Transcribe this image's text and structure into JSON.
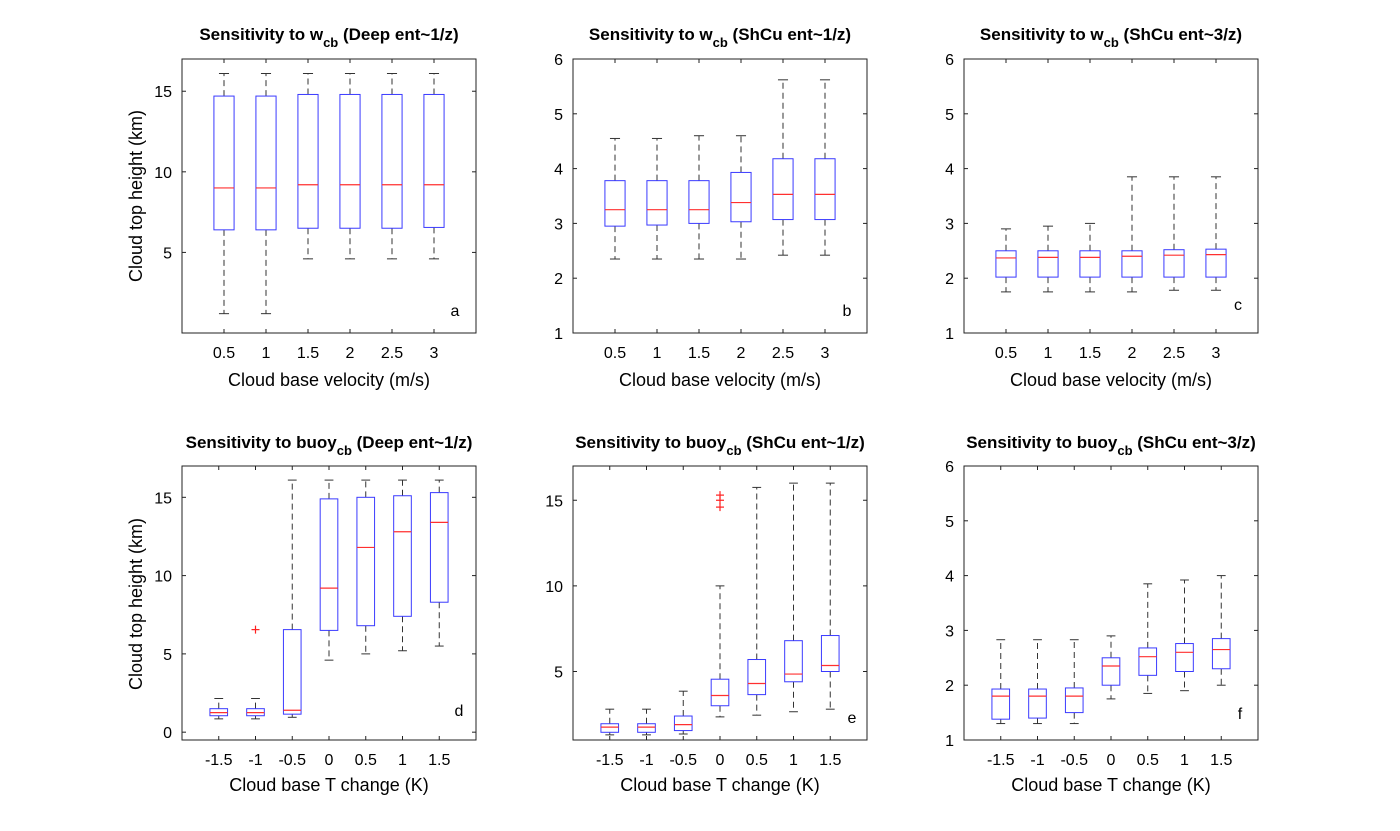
{
  "figure": {
    "row_titles_prefix": "Sensitivity to ",
    "panels_meta_note": ""
  },
  "chart_data": [
    {
      "type": "box",
      "panel_letter": "a",
      "title_main": "Sensitivity to w",
      "title_sub": "cb",
      "title_rest": " (Deep ent~1/z)",
      "xlabel": "Cloud base velocity (m/s)",
      "ylabel": "Cloud top height (km)",
      "ylim": [
        0,
        17
      ],
      "yticks": [
        5,
        10,
        15
      ],
      "categories": [
        "0.5",
        "1",
        "1.5",
        "2",
        "2.5",
        "3"
      ],
      "boxes": [
        {
          "whisker_low": 1.2,
          "q1": 6.4,
          "median": 9.0,
          "q3": 14.7,
          "whisker_high": 16.1,
          "outliers": []
        },
        {
          "whisker_low": 1.2,
          "q1": 6.4,
          "median": 9.0,
          "q3": 14.7,
          "whisker_high": 16.1,
          "outliers": []
        },
        {
          "whisker_low": 4.6,
          "q1": 6.5,
          "median": 9.2,
          "q3": 14.8,
          "whisker_high": 16.1,
          "outliers": []
        },
        {
          "whisker_low": 4.6,
          "q1": 6.5,
          "median": 9.2,
          "q3": 14.8,
          "whisker_high": 16.1,
          "outliers": []
        },
        {
          "whisker_low": 4.6,
          "q1": 6.5,
          "median": 9.2,
          "q3": 14.8,
          "whisker_high": 16.1,
          "outliers": []
        },
        {
          "whisker_low": 4.6,
          "q1": 6.55,
          "median": 9.2,
          "q3": 14.8,
          "whisker_high": 16.1,
          "outliers": []
        }
      ]
    },
    {
      "type": "box",
      "panel_letter": "b",
      "title_main": "Sensitivity to w",
      "title_sub": "cb",
      "title_rest": " (ShCu ent~1/z)",
      "xlabel": "Cloud base velocity (m/s)",
      "ylabel": "",
      "ylim": [
        1,
        6
      ],
      "yticks": [
        1,
        2,
        3,
        4,
        5,
        6
      ],
      "categories": [
        "0.5",
        "1",
        "1.5",
        "2",
        "2.5",
        "3"
      ],
      "boxes": [
        {
          "whisker_low": 2.35,
          "q1": 2.95,
          "median": 3.25,
          "q3": 3.78,
          "whisker_high": 4.55,
          "outliers": []
        },
        {
          "whisker_low": 2.35,
          "q1": 2.97,
          "median": 3.25,
          "q3": 3.78,
          "whisker_high": 4.55,
          "outliers": []
        },
        {
          "whisker_low": 2.35,
          "q1": 3.0,
          "median": 3.25,
          "q3": 3.78,
          "whisker_high": 4.6,
          "outliers": []
        },
        {
          "whisker_low": 2.35,
          "q1": 3.03,
          "median": 3.38,
          "q3": 3.93,
          "whisker_high": 4.6,
          "outliers": []
        },
        {
          "whisker_low": 2.42,
          "q1": 3.07,
          "median": 3.53,
          "q3": 4.18,
          "whisker_high": 5.62,
          "outliers": []
        },
        {
          "whisker_low": 2.42,
          "q1": 3.07,
          "median": 3.53,
          "q3": 4.18,
          "whisker_high": 5.62,
          "outliers": []
        }
      ]
    },
    {
      "type": "box",
      "panel_letter": "c",
      "title_main": "Sensitivity to w",
      "title_sub": "cb",
      "title_rest": " (ShCu ent~3/z)",
      "xlabel": "Cloud base velocity (m/s)",
      "ylabel": "",
      "ylim": [
        1,
        6
      ],
      "yticks": [
        1,
        2,
        3,
        4,
        5,
        6
      ],
      "categories": [
        "0.5",
        "1",
        "1.5",
        "2",
        "2.5",
        "3"
      ],
      "boxes": [
        {
          "whisker_low": 1.75,
          "q1": 2.02,
          "median": 2.37,
          "q3": 2.5,
          "whisker_high": 2.9,
          "outliers": []
        },
        {
          "whisker_low": 1.75,
          "q1": 2.02,
          "median": 2.38,
          "q3": 2.5,
          "whisker_high": 2.95,
          "outliers": []
        },
        {
          "whisker_low": 1.75,
          "q1": 2.02,
          "median": 2.38,
          "q3": 2.5,
          "whisker_high": 3.0,
          "outliers": []
        },
        {
          "whisker_low": 1.75,
          "q1": 2.02,
          "median": 2.4,
          "q3": 2.5,
          "whisker_high": 3.85,
          "outliers": []
        },
        {
          "whisker_low": 1.78,
          "q1": 2.02,
          "median": 2.42,
          "q3": 2.52,
          "whisker_high": 3.85,
          "outliers": []
        },
        {
          "whisker_low": 1.78,
          "q1": 2.02,
          "median": 2.43,
          "q3": 2.53,
          "whisker_high": 3.85,
          "outliers": []
        }
      ]
    },
    {
      "type": "box",
      "panel_letter": "d",
      "title_main": "Sensitivity to buoy",
      "title_sub": "cb",
      "title_rest": " (Deep ent~1/z)",
      "xlabel": "Cloud base T change (K)",
      "ylabel": "Cloud top height (km)",
      "ylim": [
        -0.5,
        17
      ],
      "yticks": [
        0,
        5,
        10,
        15
      ],
      "categories": [
        "-1.5",
        "-1",
        "-0.5",
        "0",
        "0.5",
        "1",
        "1.5"
      ],
      "boxes": [
        {
          "whisker_low": 0.85,
          "q1": 1.05,
          "median": 1.25,
          "q3": 1.5,
          "whisker_high": 2.15,
          "outliers": []
        },
        {
          "whisker_low": 0.85,
          "q1": 1.05,
          "median": 1.25,
          "q3": 1.5,
          "whisker_high": 2.15,
          "outliers": [
            6.55
          ]
        },
        {
          "whisker_low": 0.95,
          "q1": 1.15,
          "median": 1.4,
          "q3": 6.55,
          "whisker_high": 16.1,
          "outliers": []
        },
        {
          "whisker_low": 4.6,
          "q1": 6.5,
          "median": 9.2,
          "q3": 14.9,
          "whisker_high": 16.1,
          "outliers": []
        },
        {
          "whisker_low": 5.0,
          "q1": 6.8,
          "median": 11.8,
          "q3": 15.0,
          "whisker_high": 16.1,
          "outliers": []
        },
        {
          "whisker_low": 5.2,
          "q1": 7.4,
          "median": 12.8,
          "q3": 15.1,
          "whisker_high": 16.1,
          "outliers": []
        },
        {
          "whisker_low": 5.5,
          "q1": 8.3,
          "median": 13.4,
          "q3": 15.3,
          "whisker_high": 16.1,
          "outliers": []
        }
      ]
    },
    {
      "type": "box",
      "panel_letter": "e",
      "title_main": "Sensitivity to buoy",
      "title_sub": "cb",
      "title_rest": " (ShCu ent~1/z)",
      "xlabel": "Cloud base T change (K)",
      "ylabel": "",
      "ylim": [
        1,
        17
      ],
      "yticks": [
        5,
        10,
        15
      ],
      "categories": [
        "-1.5",
        "-1",
        "-0.5",
        "0",
        "0.5",
        "1",
        "1.5"
      ],
      "boxes": [
        {
          "whisker_low": 1.3,
          "q1": 1.45,
          "median": 1.75,
          "q3": 1.95,
          "whisker_high": 2.8,
          "outliers": []
        },
        {
          "whisker_low": 1.3,
          "q1": 1.45,
          "median": 1.75,
          "q3": 1.95,
          "whisker_high": 2.8,
          "outliers": []
        },
        {
          "whisker_low": 1.35,
          "q1": 1.55,
          "median": 1.9,
          "q3": 2.4,
          "whisker_high": 3.85,
          "outliers": []
        },
        {
          "whisker_low": 2.35,
          "q1": 3.0,
          "median": 3.6,
          "q3": 4.55,
          "whisker_high": 10.0,
          "outliers": [
            14.6,
            15.0,
            15.3
          ]
        },
        {
          "whisker_low": 2.45,
          "q1": 3.65,
          "median": 4.3,
          "q3": 5.7,
          "whisker_high": 15.75,
          "outliers": []
        },
        {
          "whisker_low": 2.65,
          "q1": 4.4,
          "median": 4.85,
          "q3": 6.8,
          "whisker_high": 16.0,
          "outliers": []
        },
        {
          "whisker_low": 2.8,
          "q1": 5.0,
          "median": 5.35,
          "q3": 7.1,
          "whisker_high": 16.0,
          "outliers": []
        }
      ]
    },
    {
      "type": "box",
      "panel_letter": "f",
      "title_main": "Sensitivity to buoy",
      "title_sub": "cb",
      "title_rest": " (ShCu ent~3/z)",
      "xlabel": "Cloud base T change (K)",
      "ylabel": "",
      "ylim": [
        1,
        6
      ],
      "yticks": [
        1,
        2,
        3,
        4,
        5,
        6
      ],
      "categories": [
        "-1.5",
        "-1",
        "-0.5",
        "0",
        "0.5",
        "1",
        "1.5"
      ],
      "boxes": [
        {
          "whisker_low": 1.3,
          "q1": 1.38,
          "median": 1.8,
          "q3": 1.93,
          "whisker_high": 2.83,
          "outliers": []
        },
        {
          "whisker_low": 1.3,
          "q1": 1.4,
          "median": 1.8,
          "q3": 1.93,
          "whisker_high": 2.83,
          "outliers": []
        },
        {
          "whisker_low": 1.3,
          "q1": 1.5,
          "median": 1.8,
          "q3": 1.95,
          "whisker_high": 2.83,
          "outliers": []
        },
        {
          "whisker_low": 1.75,
          "q1": 2.0,
          "median": 2.35,
          "q3": 2.5,
          "whisker_high": 2.9,
          "outliers": []
        },
        {
          "whisker_low": 1.85,
          "q1": 2.18,
          "median": 2.52,
          "q3": 2.68,
          "whisker_high": 3.85,
          "outliers": []
        },
        {
          "whisker_low": 1.9,
          "q1": 2.25,
          "median": 2.6,
          "q3": 2.76,
          "whisker_high": 3.92,
          "outliers": []
        },
        {
          "whisker_low": 2.0,
          "q1": 2.3,
          "median": 2.65,
          "q3": 2.85,
          "whisker_high": 4.0,
          "outliers": []
        }
      ]
    }
  ],
  "colors": {
    "box": "#3a3aff",
    "median": "#ff3030",
    "whisker": "#333333",
    "outlier": "#ff2020",
    "axis": "#222222"
  }
}
